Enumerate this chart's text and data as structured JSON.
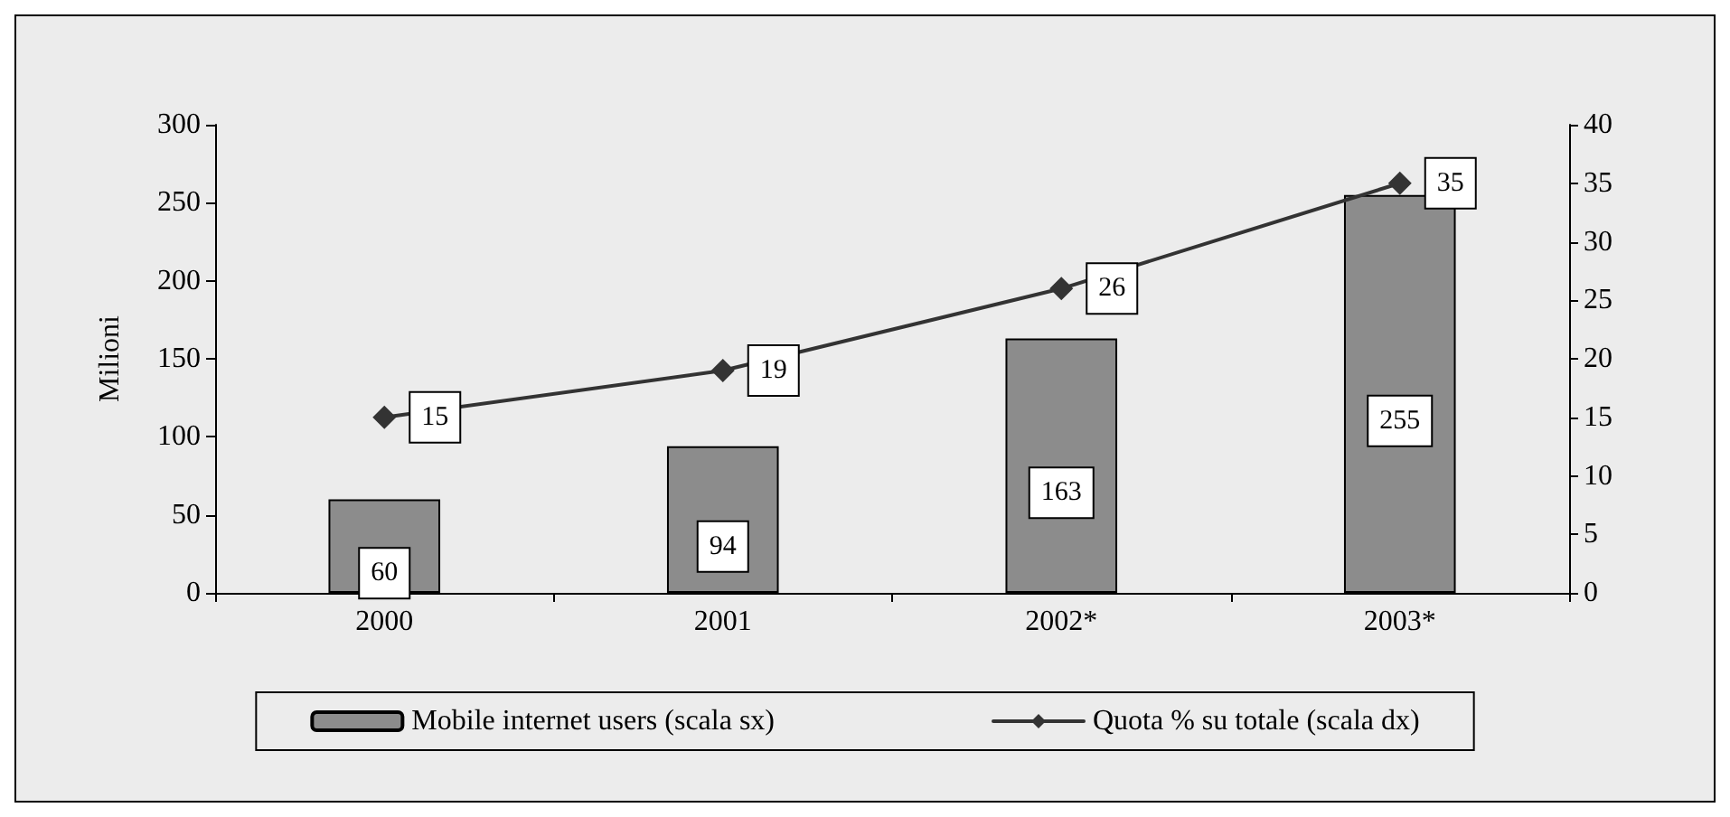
{
  "chart_data": {
    "type": "bar",
    "ylabel": "Milioni",
    "categories": [
      "2000",
      "2001",
      "2002*",
      "2003*"
    ],
    "series": [
      {
        "name": "Mobile internet users (scala sx)",
        "color": "#8c8c8c",
        "values": [
          60,
          94,
          163,
          255
        ]
      },
      {
        "name": "Quota % su totale (scala dx)",
        "type": "line",
        "axis": "y2",
        "color": "#333333",
        "values": [
          15,
          19,
          26,
          35
        ],
        "marker": "diamond"
      }
    ],
    "ylim": [
      0,
      300
    ],
    "yticks": [
      0,
      50,
      100,
      150,
      200,
      250,
      300
    ],
    "y2lim": [
      0,
      40
    ],
    "y2ticks": [
      0,
      5,
      10,
      15,
      20,
      25,
      30,
      35,
      40
    ],
    "data_labels": true,
    "grid": false,
    "legend": "bottom",
    "line_style": "solid"
  }
}
